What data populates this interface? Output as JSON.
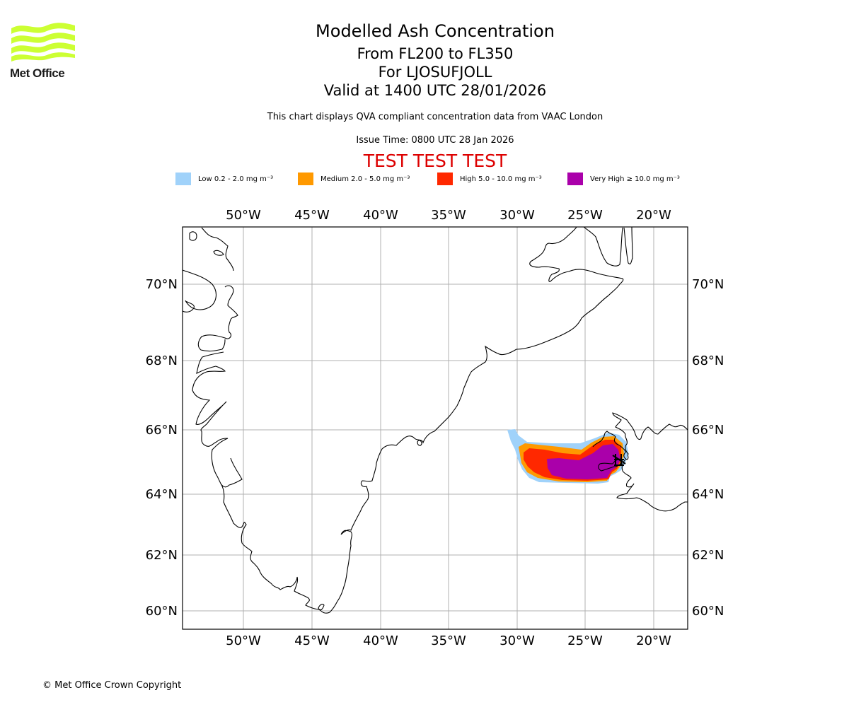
{
  "logo": {
    "text": "Met Office",
    "icon": "met-office-waves-icon",
    "color": "#ccff33"
  },
  "header": {
    "title": "Modelled Ash Concentration",
    "levels": "From FL200 to FL350",
    "volcano": "For LJOSUFJOLL",
    "valid": "Valid at 1400 UTC 28/01/2026",
    "subtitle": "This chart displays QVA compliant concentration data from VAAC London",
    "issue_time": "Issue Time: 0800 UTC 28 Jan 2026",
    "test_banner": "TEST TEST TEST",
    "test_color": "#dd0000"
  },
  "legend": [
    {
      "label": "Low 0.2 - 2.0 mg m⁻³",
      "color": "#a0d2fa"
    },
    {
      "label": "Medium 2.0 - 5.0 mg m⁻³",
      "color": "#ff9900"
    },
    {
      "label": "High 5.0 - 10.0 mg m⁻³",
      "color": "#ff2800"
    },
    {
      "label": "Very High ≥ 10.0 mg m⁻³",
      "color": "#aa00aa"
    }
  ],
  "map": {
    "lon_labels": [
      "50°W",
      "45°W",
      "40°W",
      "35°W",
      "30°W",
      "25°W",
      "20°W"
    ],
    "lat_labels": [
      "70°N",
      "68°N",
      "66°N",
      "64°N",
      "62°N",
      "60°N"
    ],
    "lon_range": [
      "54.5°W",
      "17.5°W"
    ],
    "lat_range": [
      "59.5°N",
      "71.5°N"
    ],
    "features": [
      "Greenland coastline",
      "Iceland coastline"
    ],
    "volcano_marker": "Ljosufjoll (Snaefellsnes, Iceland)"
  },
  "footer": {
    "copyright": "© Met Office Crown Copyright"
  }
}
